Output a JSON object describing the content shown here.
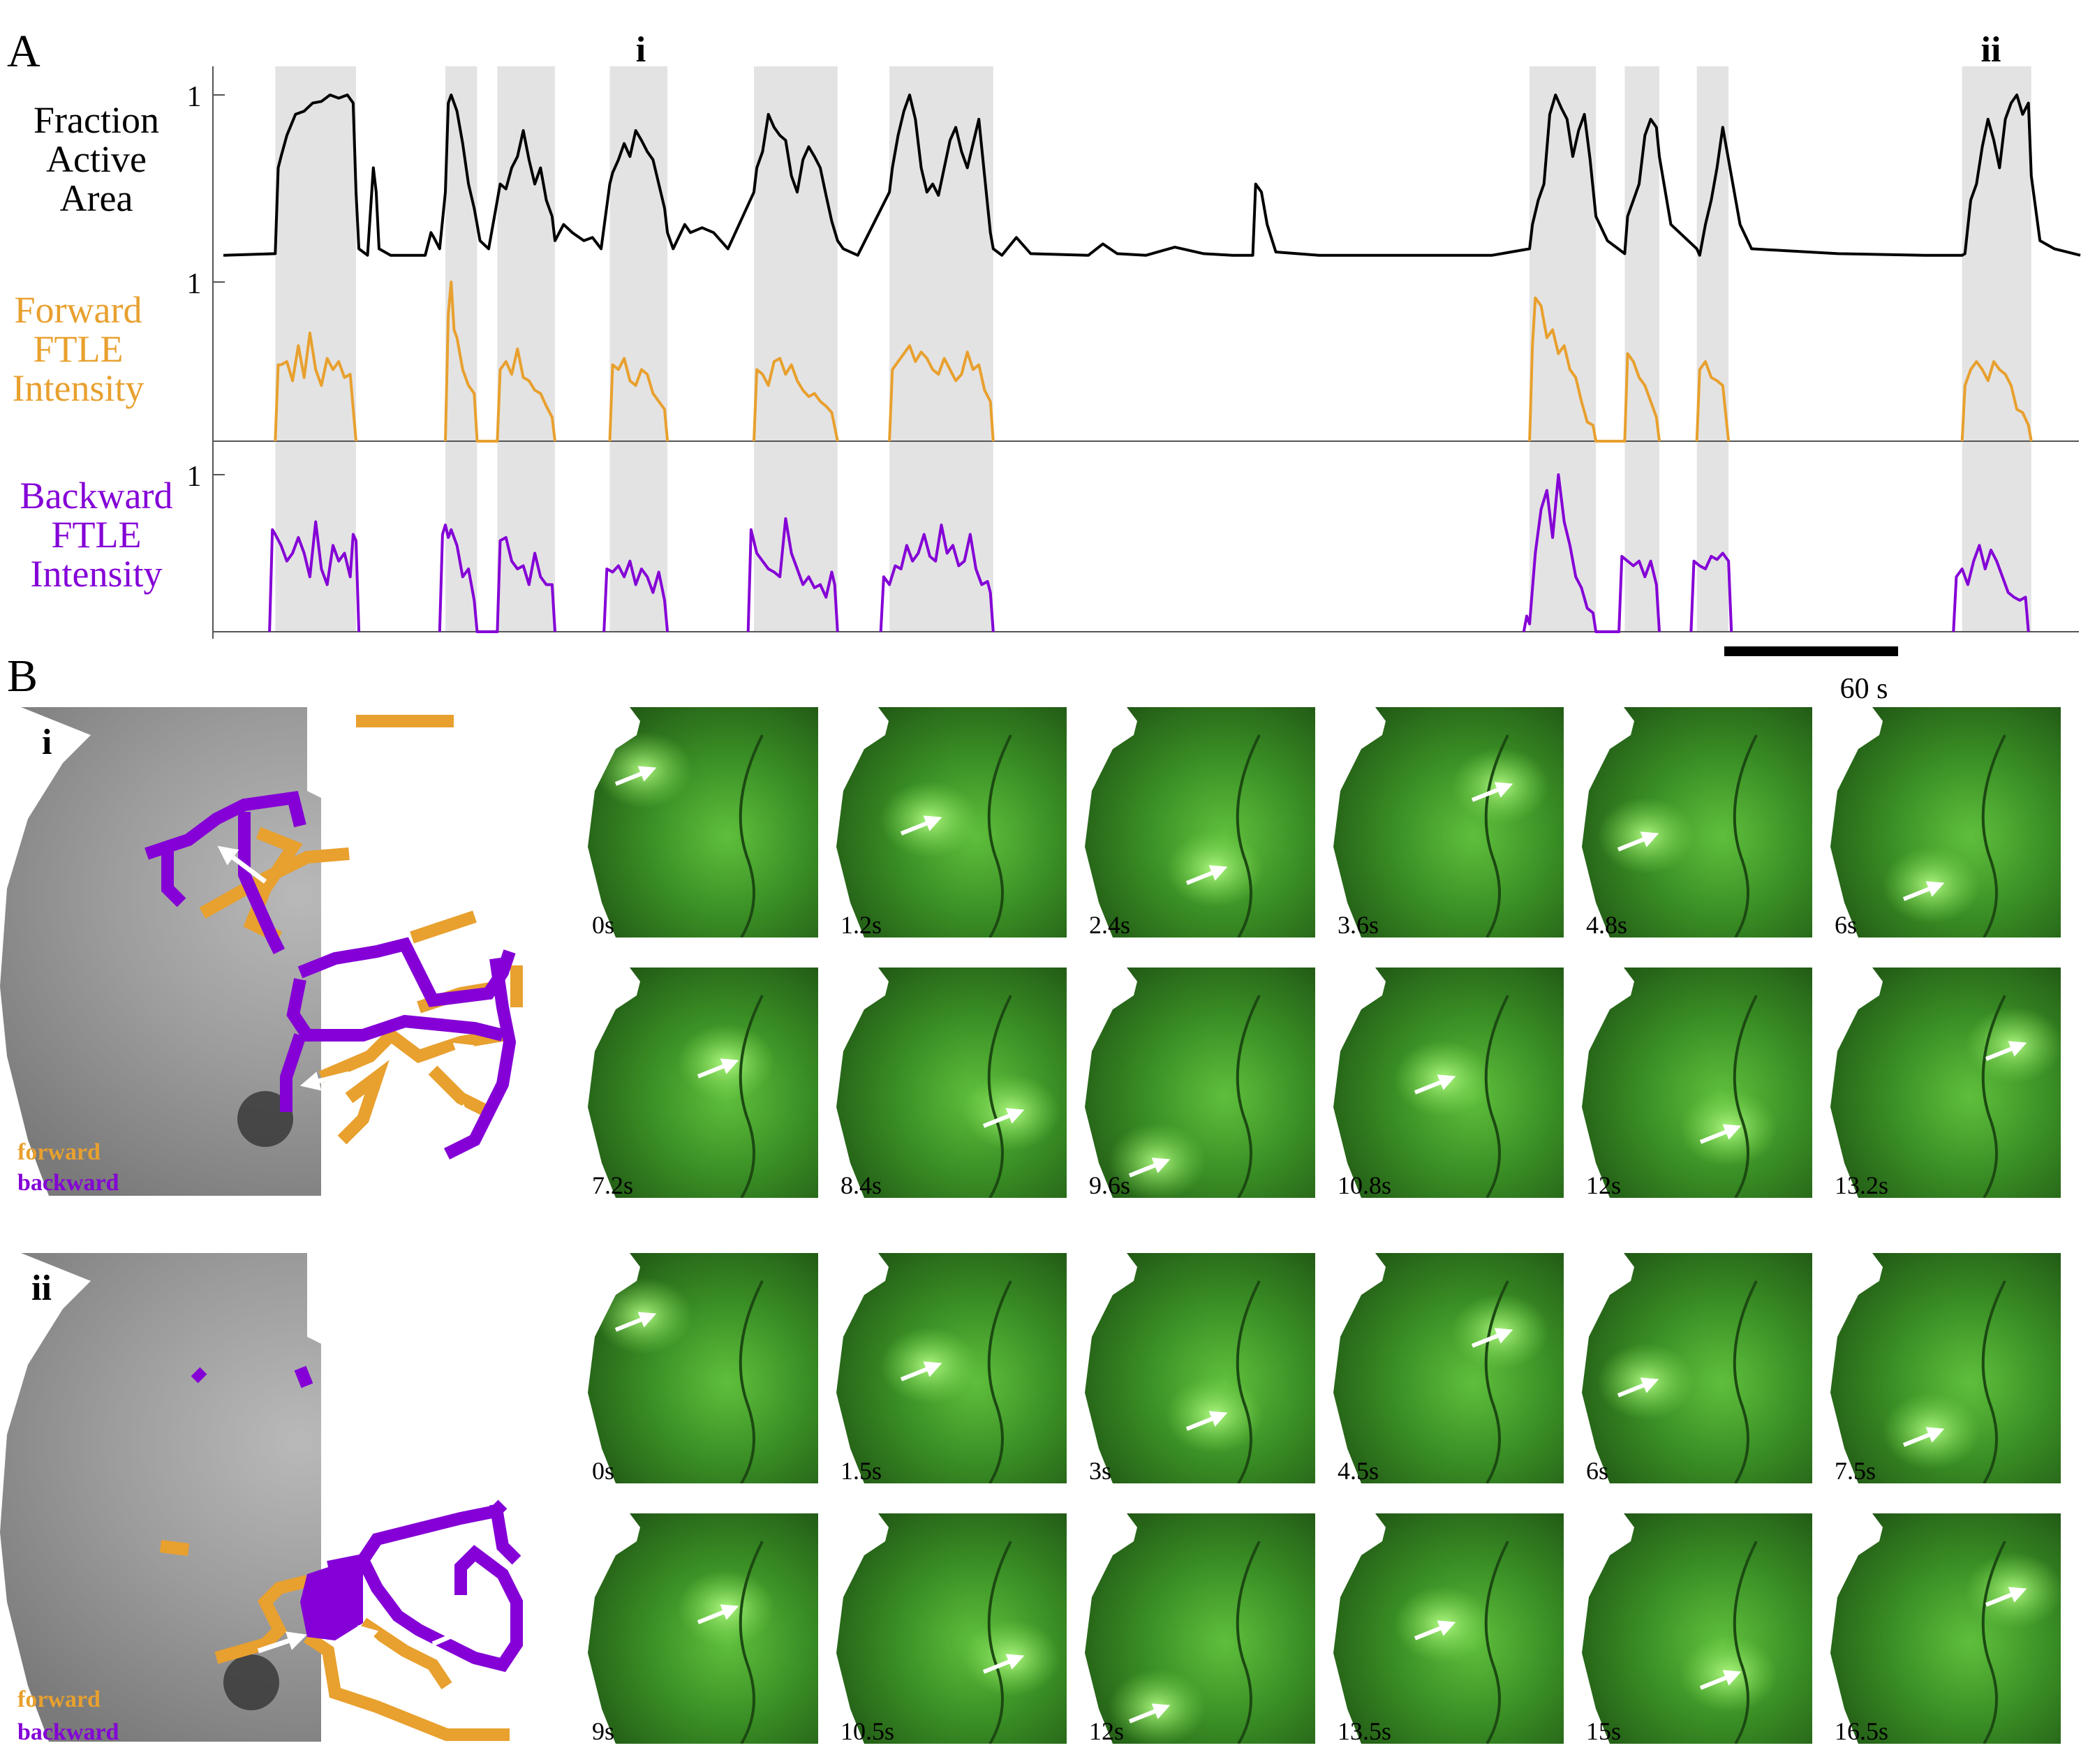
{
  "panels": {
    "A": "A",
    "B": "B"
  },
  "colors": {
    "fraction": "#000000",
    "forward": "#e8a02e",
    "backward": "#8400d6",
    "shade": "#e3e3e3",
    "frame_green": "#2f8a1f"
  },
  "panel_a": {
    "event_markers": [
      "i",
      "ii"
    ],
    "rows": [
      {
        "id": "fraction",
        "label_lines": [
          "Fraction",
          "Active",
          "Area"
        ],
        "tick": "1"
      },
      {
        "id": "forward",
        "label_lines": [
          "Forward",
          "FTLE",
          "Intensity"
        ],
        "tick": "1"
      },
      {
        "id": "backward",
        "label_lines": [
          "Backward",
          "FTLE",
          "Intensity"
        ],
        "tick": "1"
      }
    ],
    "scale_bar_label": "60 s"
  },
  "chart_data": {
    "type": "line",
    "title": "",
    "xlabel": "",
    "time_extent_s": [
      0,
      644
    ],
    "scale_bar_s": 60,
    "shaded_events_s": [
      [
        18,
        46
      ],
      [
        77,
        88
      ],
      [
        95,
        115
      ],
      [
        134,
        154
      ],
      [
        184,
        213
      ],
      [
        231,
        267
      ],
      [
        453,
        476
      ],
      [
        486,
        498
      ],
      [
        511,
        522
      ],
      [
        603,
        627
      ]
    ],
    "series": [
      {
        "name": "Fraction Active Area",
        "ylim": [
          0,
          1.05
        ],
        "x": [
          0,
          18,
          19,
          20,
          22,
          25,
          28,
          31,
          34,
          37,
          40,
          43,
          45,
          46,
          47,
          50,
          52,
          53,
          54,
          58,
          70,
          72,
          73,
          75,
          77,
          78,
          79,
          81,
          83,
          85,
          87,
          88,
          89,
          92,
          95,
          96,
          98,
          100,
          102,
          104,
          106,
          108,
          110,
          112,
          114,
          115,
          118,
          121,
          125,
          128,
          131,
          134,
          135,
          137,
          139,
          141,
          143,
          145,
          147,
          149,
          151,
          153,
          154,
          156,
          160,
          162,
          166,
          170,
          175,
          184,
          185,
          187,
          189,
          191,
          193,
          195,
          197,
          199,
          201,
          203,
          205,
          207,
          209,
          211,
          213,
          215,
          220,
          231,
          232,
          234,
          236,
          238,
          240,
          242,
          244,
          246,
          248,
          250,
          252,
          254,
          256,
          258,
          260,
          262,
          264,
          266,
          267,
          270,
          275,
          280,
          300,
          305,
          310,
          320,
          330,
          340,
          350,
          355,
          357,
          358,
          360,
          362,
          365,
          380,
          400,
          420,
          440,
          453,
          454,
          456,
          458,
          460,
          462,
          464,
          466,
          468,
          470,
          472,
          474,
          476,
          480,
          486,
          487,
          489,
          491,
          493,
          495,
          497,
          498,
          502,
          511,
          512,
          514,
          516,
          518,
          520,
          522,
          526,
          530,
          560,
          590,
          603,
          604,
          606,
          608,
          610,
          612,
          614,
          616,
          618,
          620,
          622,
          624,
          626,
          627,
          630,
          635,
          644
        ],
        "y": [
          0.01,
          0.02,
          0.55,
          0.62,
          0.75,
          0.88,
          0.9,
          0.95,
          0.96,
          1.0,
          0.98,
          1.0,
          0.95,
          0.4,
          0.05,
          0.01,
          0.55,
          0.4,
          0.05,
          0.01,
          0.01,
          0.15,
          0.12,
          0.05,
          0.4,
          0.95,
          1.0,
          0.9,
          0.7,
          0.45,
          0.3,
          0.2,
          0.1,
          0.05,
          0.35,
          0.45,
          0.42,
          0.55,
          0.62,
          0.78,
          0.6,
          0.45,
          0.55,
          0.35,
          0.25,
          0.1,
          0.2,
          0.15,
          0.1,
          0.12,
          0.05,
          0.45,
          0.52,
          0.6,
          0.7,
          0.62,
          0.78,
          0.72,
          0.65,
          0.6,
          0.45,
          0.3,
          0.15,
          0.05,
          0.2,
          0.15,
          0.18,
          0.15,
          0.05,
          0.4,
          0.55,
          0.65,
          0.88,
          0.8,
          0.75,
          0.72,
          0.5,
          0.4,
          0.6,
          0.68,
          0.62,
          0.55,
          0.38,
          0.22,
          0.1,
          0.05,
          0.01,
          0.4,
          0.55,
          0.75,
          0.9,
          1.0,
          0.85,
          0.55,
          0.4,
          0.45,
          0.38,
          0.55,
          0.72,
          0.8,
          0.65,
          0.55,
          0.7,
          0.85,
          0.5,
          0.15,
          0.05,
          0.01,
          0.12,
          0.02,
          0.01,
          0.08,
          0.02,
          0.01,
          0.06,
          0.02,
          0.01,
          0.01,
          0.01,
          0.45,
          0.4,
          0.2,
          0.03,
          0.01,
          0.01,
          0.01,
          0.01,
          0.05,
          0.2,
          0.35,
          0.45,
          0.88,
          1.0,
          0.92,
          0.85,
          0.62,
          0.78,
          0.88,
          0.6,
          0.25,
          0.1,
          0.02,
          0.25,
          0.35,
          0.45,
          0.75,
          0.85,
          0.8,
          0.62,
          0.2,
          0.05,
          0.01,
          0.2,
          0.35,
          0.55,
          0.8,
          0.6,
          0.2,
          0.05,
          0.02,
          0.01,
          0.01,
          0.02,
          0.35,
          0.45,
          0.68,
          0.85,
          0.72,
          0.55,
          0.85,
          0.95,
          1.0,
          0.88,
          0.95,
          0.5,
          0.1,
          0.05,
          0.01
        ]
      },
      {
        "name": "Forward FTLE Intensity",
        "ylim": [
          0,
          1.05
        ],
        "x": [
          18,
          19,
          20,
          22,
          24,
          26,
          28,
          30,
          32,
          34,
          36,
          38,
          40,
          42,
          44,
          46,
          77,
          78,
          79,
          80,
          81,
          83,
          85,
          87,
          88,
          95,
          96,
          98,
          100,
          102,
          104,
          106,
          108,
          110,
          112,
          114,
          115,
          134,
          135,
          137,
          139,
          141,
          143,
          145,
          147,
          149,
          151,
          153,
          154,
          184,
          185,
          187,
          189,
          191,
          193,
          195,
          197,
          199,
          201,
          203,
          205,
          207,
          209,
          211,
          213,
          231,
          232,
          234,
          236,
          238,
          240,
          242,
          244,
          246,
          248,
          250,
          252,
          254,
          256,
          258,
          260,
          262,
          264,
          266,
          267,
          453,
          454,
          455,
          457,
          459,
          461,
          463,
          465,
          467,
          469,
          471,
          473,
          475,
          476,
          486,
          487,
          489,
          491,
          493,
          495,
          497,
          498,
          511,
          512,
          514,
          516,
          518,
          520,
          522,
          603,
          604,
          606,
          608,
          610,
          612,
          614,
          616,
          618,
          620,
          622,
          624,
          626,
          627
        ],
        "y": [
          0,
          0.48,
          0.48,
          0.5,
          0.38,
          0.6,
          0.4,
          0.68,
          0.45,
          0.35,
          0.52,
          0.45,
          0.5,
          0.4,
          0.42,
          0,
          0,
          0.8,
          1.0,
          0.7,
          0.65,
          0.45,
          0.35,
          0.3,
          0,
          0,
          0.45,
          0.5,
          0.42,
          0.58,
          0.4,
          0.38,
          0.32,
          0.3,
          0.22,
          0.15,
          0,
          0,
          0.48,
          0.45,
          0.52,
          0.38,
          0.35,
          0.45,
          0.42,
          0.3,
          0.25,
          0.2,
          0,
          0,
          0.45,
          0.42,
          0.35,
          0.5,
          0.52,
          0.42,
          0.48,
          0.38,
          0.32,
          0.28,
          0.3,
          0.25,
          0.22,
          0.18,
          0,
          0,
          0.45,
          0.5,
          0.55,
          0.6,
          0.5,
          0.56,
          0.52,
          0.45,
          0.42,
          0.52,
          0.45,
          0.38,
          0.42,
          0.56,
          0.45,
          0.48,
          0.32,
          0.25,
          0,
          0,
          0.6,
          0.9,
          0.85,
          0.65,
          0.7,
          0.55,
          0.6,
          0.45,
          0.4,
          0.25,
          0.12,
          0.1,
          0,
          0,
          0.55,
          0.5,
          0.4,
          0.35,
          0.25,
          0.15,
          0,
          0,
          0.45,
          0.5,
          0.4,
          0.38,
          0.35,
          0,
          0,
          0.35,
          0.45,
          0.5,
          0.45,
          0.38,
          0.5,
          0.45,
          0.42,
          0.35,
          0.2,
          0.18,
          0.1,
          0
        ],
        "fill_under": false
      },
      {
        "name": "Backward FTLE Intensity",
        "ylim": [
          0,
          1.05
        ],
        "x": [
          16,
          17,
          18,
          20,
          22,
          24,
          26,
          28,
          30,
          32,
          34,
          36,
          38,
          40,
          42,
          44,
          45,
          46,
          47,
          75,
          76,
          77,
          78,
          79,
          81,
          83,
          85,
          87,
          88,
          95,
          96,
          98,
          100,
          102,
          104,
          106,
          108,
          110,
          112,
          114,
          115,
          132,
          133,
          135,
          137,
          139,
          141,
          143,
          145,
          147,
          149,
          151,
          153,
          154,
          182,
          183,
          185,
          187,
          189,
          191,
          193,
          195,
          197,
          199,
          201,
          203,
          205,
          207,
          209,
          211,
          212,
          213,
          228,
          229,
          231,
          233,
          235,
          237,
          239,
          241,
          243,
          245,
          247,
          249,
          251,
          253,
          255,
          257,
          259,
          261,
          263,
          265,
          266,
          267,
          451,
          452,
          453,
          455,
          457,
          459,
          461,
          463,
          465,
          467,
          469,
          471,
          473,
          475,
          476,
          484,
          485,
          487,
          489,
          491,
          493,
          495,
          497,
          498,
          509,
          510,
          512,
          514,
          516,
          518,
          520,
          522,
          523,
          600,
          601,
          603,
          605,
          607,
          609,
          611,
          613,
          615,
          617,
          619,
          621,
          623,
          625,
          626
        ],
        "y": [
          0,
          0.65,
          0.62,
          0.55,
          0.45,
          0.5,
          0.6,
          0.5,
          0.35,
          0.7,
          0.4,
          0.3,
          0.55,
          0.45,
          0.5,
          0.35,
          0.62,
          0.58,
          0,
          0,
          0.62,
          0.68,
          0.6,
          0.65,
          0.55,
          0.35,
          0.4,
          0.2,
          0,
          0,
          0.58,
          0.6,
          0.45,
          0.4,
          0.42,
          0.3,
          0.5,
          0.35,
          0.3,
          0.3,
          0,
          0,
          0.4,
          0.38,
          0.42,
          0.35,
          0.45,
          0.3,
          0.4,
          0.35,
          0.25,
          0.38,
          0.2,
          0,
          0,
          0.65,
          0.5,
          0.45,
          0.4,
          0.38,
          0.35,
          0.72,
          0.5,
          0.4,
          0.3,
          0.35,
          0.28,
          0.3,
          0.22,
          0.38,
          0.3,
          0,
          0,
          0.35,
          0.3,
          0.42,
          0.4,
          0.55,
          0.45,
          0.5,
          0.62,
          0.48,
          0.45,
          0.68,
          0.5,
          0.55,
          0.42,
          0.45,
          0.62,
          0.4,
          0.3,
          0.32,
          0.25,
          0,
          0,
          0.1,
          0.05,
          0.5,
          0.78,
          0.9,
          0.6,
          1.0,
          0.7,
          0.55,
          0.35,
          0.28,
          0.15,
          0.12,
          0,
          0,
          0.48,
          0.45,
          0.42,
          0.45,
          0.35,
          0.45,
          0.3,
          0,
          0,
          0.45,
          0.42,
          0.4,
          0.48,
          0.46,
          0.5,
          0.45,
          0,
          0,
          0.35,
          0.4,
          0.3,
          0.45,
          0.55,
          0.4,
          0.52,
          0.45,
          0.35,
          0.25,
          0.22,
          0.2,
          0.22,
          0
        ]
      }
    ]
  },
  "panel_b": {
    "events": [
      {
        "id": "i",
        "label": "i",
        "legend": {
          "forward": "forward",
          "backward": "backward"
        },
        "frames": [
          "0s",
          "1.2s",
          "2.4s",
          "3.6s",
          "4.8s",
          "6s",
          "7.2s",
          "8.4s",
          "9.6s",
          "10.8s",
          "12s",
          "13.2s"
        ]
      },
      {
        "id": "ii",
        "label": "ii",
        "legend": {
          "forward": "forward",
          "backward": "backward"
        },
        "frames": [
          "0s",
          "1.5s",
          "3s",
          "4.5s",
          "6s",
          "7.5s",
          "9s",
          "10.5s",
          "12s",
          "13.5s",
          "15s",
          "16.5s"
        ]
      }
    ]
  }
}
